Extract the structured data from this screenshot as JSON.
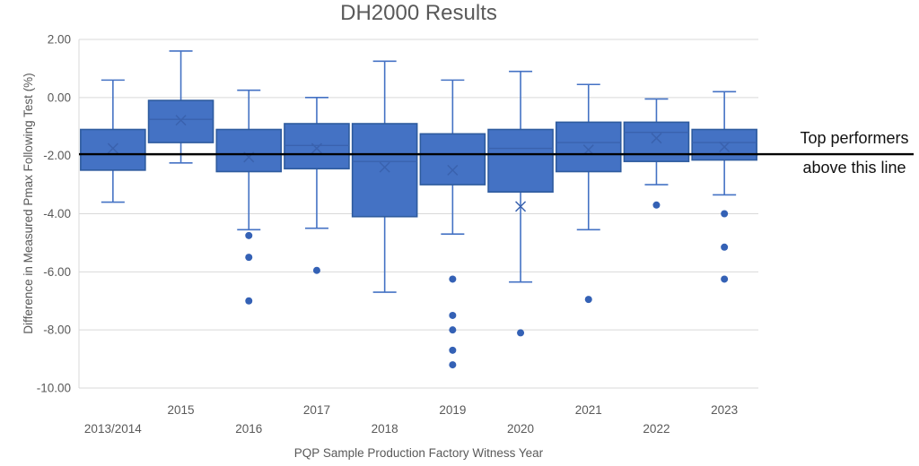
{
  "title": "DH2000 Results",
  "annotation": {
    "line1": "Top performers",
    "line2": "above this line"
  },
  "chart_data": {
    "type": "boxplot",
    "title": "DH2000 Results",
    "xlabel": "PQP Sample Production Factory Witness Year",
    "ylabel": "Difference in Measured Pmax Following Test (%)",
    "ylim": [
      -10,
      2
    ],
    "yticks": [
      2,
      0,
      -2,
      -4,
      -6,
      -8,
      -10
    ],
    "ytick_labels": [
      "2.00",
      "0.00",
      "-2.00",
      "-4.00",
      "-6.00",
      "-8.00",
      "-10.00"
    ],
    "grid": true,
    "legend": "none",
    "reference_line": {
      "value": -1.95,
      "color": "#000000",
      "label": "Top performers above this line"
    },
    "categories": [
      "2013/2014",
      "2015",
      "2016",
      "2017",
      "2018",
      "2019",
      "2020",
      "2021",
      "2022",
      "2023"
    ],
    "series": [
      {
        "label": "2013/2014",
        "whisker_high": 0.6,
        "q3": -1.1,
        "median": -1.95,
        "mean": -1.75,
        "q1": -2.5,
        "whisker_low": -3.6,
        "outliers": []
      },
      {
        "label": "2015",
        "whisker_high": 1.6,
        "q3": -0.1,
        "median": -0.75,
        "mean": -0.78,
        "q1": -1.55,
        "whisker_low": -2.25,
        "outliers": []
      },
      {
        "label": "2016",
        "whisker_high": 0.25,
        "q3": -1.1,
        "median": -1.95,
        "mean": -2.05,
        "q1": -2.55,
        "whisker_low": -4.55,
        "outliers": [
          -4.75,
          -5.5,
          -7.0
        ]
      },
      {
        "label": "2017",
        "whisker_high": 0.0,
        "q3": -0.9,
        "median": -1.65,
        "mean": -1.75,
        "q1": -2.45,
        "whisker_low": -4.5,
        "outliers": [
          -5.95
        ]
      },
      {
        "label": "2018",
        "whisker_high": 1.25,
        "q3": -0.9,
        "median": -2.2,
        "mean": -2.4,
        "q1": -4.1,
        "whisker_low": -6.7,
        "outliers": []
      },
      {
        "label": "2019",
        "whisker_high": 0.6,
        "q3": -1.25,
        "median": -1.95,
        "mean": -2.5,
        "q1": -3.0,
        "whisker_low": -4.7,
        "outliers": [
          -6.25,
          -7.5,
          -8.0,
          -8.7,
          -9.2
        ]
      },
      {
        "label": "2020",
        "whisker_high": 0.9,
        "q3": -1.1,
        "median": -1.75,
        "mean": -3.75,
        "q1": -3.25,
        "whisker_low": -6.35,
        "outliers": [
          -8.1
        ]
      },
      {
        "label": "2021",
        "whisker_high": 0.45,
        "q3": -0.85,
        "median": -1.55,
        "mean": -1.8,
        "q1": -2.55,
        "whisker_low": -4.55,
        "outliers": [
          -6.95
        ]
      },
      {
        "label": "2022",
        "whisker_high": -0.05,
        "q3": -0.85,
        "median": -1.2,
        "mean": -1.4,
        "q1": -2.2,
        "whisker_low": -3.0,
        "outliers": [
          -3.7
        ]
      },
      {
        "label": "2023",
        "whisker_high": 0.2,
        "q3": -1.1,
        "median": -1.55,
        "mean": -1.7,
        "q1": -2.15,
        "whisker_low": -3.35,
        "outliers": [
          -4.0,
          -5.15,
          -6.25
        ]
      }
    ],
    "colors": {
      "box_fill": "#4472C4",
      "box_stroke": "#2E5B9E",
      "whisker": "#4472C4",
      "median": "#3A62AE",
      "mean_marker": "#3A62AE",
      "outlier": "#3461B5",
      "gridline": "#D9D9D9",
      "axis_text": "#595959",
      "reference_line": "#000000"
    }
  }
}
